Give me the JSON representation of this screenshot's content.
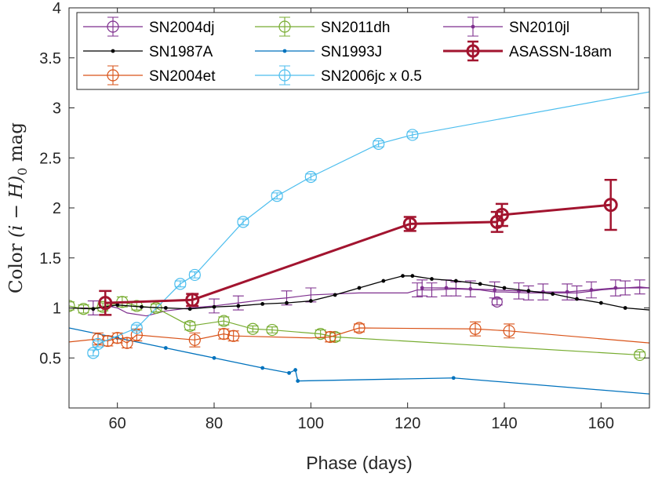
{
  "chart_data": {
    "type": "line",
    "title": "",
    "xlabel": "Phase (days)",
    "ylabel": "Color (i − H)₀ mag",
    "ylabel_parts": {
      "prefix": "Color ",
      "math": "(i − H)",
      "sub": "0",
      "suffix": " mag"
    },
    "xlim": [
      50,
      170
    ],
    "ylim": [
      0,
      4
    ],
    "xticks": [
      60,
      80,
      100,
      120,
      140,
      160
    ],
    "yticks": [
      0.5,
      1,
      1.5,
      2,
      2.5,
      3,
      3.5,
      4
    ],
    "ytick_labels": [
      "0.5",
      "1",
      "1.5",
      "2",
      "2.5",
      "3",
      "3.5",
      "4"
    ],
    "series": [
      {
        "name": "SN2004dj",
        "color": "#7E2F8E",
        "marker": "circle",
        "errorbars": true,
        "x": [
          51,
          55,
          58,
          60,
          62,
          66,
          70,
          75,
          80,
          85,
          90,
          95,
          100,
          110,
          120,
          122,
          125,
          130,
          135,
          138,
          140,
          145,
          150,
          155,
          160,
          165,
          168,
          170
        ],
        "y": [
          1.0,
          1.0,
          1.02,
          1.0,
          0.95,
          0.92,
          0.97,
          1.0,
          1.02,
          1.05,
          1.08,
          1.1,
          1.13,
          1.15,
          1.15,
          1.18,
          1.18,
          1.19,
          1.18,
          1.16,
          1.16,
          1.15,
          1.15,
          1.15,
          1.18,
          1.2,
          1.21,
          1.2
        ],
        "marked_points": [
          [
            138.5,
            1.06,
            0.03
          ]
        ]
      },
      {
        "name": "SN1987A",
        "color": "#000000",
        "marker": "dot",
        "errorbars": false,
        "x": [
          50,
          55,
          60,
          65,
          70,
          75,
          80,
          85,
          90,
          95,
          100,
          105,
          110,
          115,
          119,
          121,
          125,
          130,
          135,
          140,
          145,
          150,
          155,
          160,
          165,
          170
        ],
        "y": [
          1.0,
          0.99,
          1.03,
          1.01,
          1.0,
          0.99,
          1.01,
          1.02,
          1.04,
          1.05,
          1.07,
          1.13,
          1.2,
          1.27,
          1.32,
          1.32,
          1.29,
          1.27,
          1.24,
          1.2,
          1.17,
          1.14,
          1.09,
          1.05,
          1.0,
          0.98
        ]
      },
      {
        "name": "SN2004et",
        "color": "#D95319",
        "marker": "circle",
        "errorbars": true,
        "x": [
          50,
          56,
          58,
          60,
          62,
          64,
          76,
          82,
          84,
          100,
          104,
          110,
          134,
          141,
          170
        ],
        "y": [
          0.66,
          0.69,
          0.67,
          0.7,
          0.65,
          0.73,
          0.68,
          0.74,
          0.72,
          0.7,
          0.71,
          0.8,
          0.79,
          0.77,
          0.65
        ],
        "yerr": [
          0,
          0.06,
          0.05,
          0.05,
          0.05,
          0.06,
          0.07,
          0.05,
          0.05,
          0,
          0.05,
          0.04,
          0.07,
          0.07,
          0
        ]
      },
      {
        "name": "SN2011dh",
        "color": "#77AC30",
        "marker": "circle",
        "errorbars": true,
        "x": [
          50,
          53,
          57,
          61,
          64,
          68,
          75,
          82,
          88,
          92,
          102,
          105,
          168
        ],
        "y": [
          1.02,
          0.99,
          1.01,
          1.06,
          1.02,
          1.0,
          0.82,
          0.87,
          0.79,
          0.78,
          0.74,
          0.71,
          0.53
        ],
        "yerr": [
          0.04,
          0.04,
          0.04,
          0.05,
          0.04,
          0.04,
          0.04,
          0.04,
          0.03,
          0.03,
          0.04,
          0.04,
          0.03
        ]
      },
      {
        "name": "SN1993J",
        "color": "#0072BD",
        "marker": "dot",
        "errorbars": false,
        "x": [
          50,
          60,
          70,
          80,
          90,
          95.5,
          96.8,
          97.3,
          129.5,
          170
        ],
        "y": [
          0.8,
          0.7,
          0.6,
          0.5,
          0.4,
          0.35,
          0.38,
          0.27,
          0.3,
          0.14
        ]
      },
      {
        "name": "SN2006jc x 0.5",
        "color": "#4DBEEE",
        "marker": "circle",
        "errorbars": true,
        "x": [
          55,
          56,
          64,
          73,
          76,
          86,
          93,
          100,
          114,
          121,
          170
        ],
        "y": [
          0.55,
          0.64,
          0.8,
          1.24,
          1.33,
          1.86,
          2.12,
          2.31,
          2.64,
          2.73,
          3.16
        ],
        "yerr": [
          0.03,
          0.03,
          0.03,
          0.03,
          0.03,
          0.03,
          0.03,
          0.03,
          0.03,
          0.03,
          0
        ]
      },
      {
        "name": "SN2010jl",
        "color": "#7E2F8E",
        "marker": "dot",
        "errorbars": true,
        "x": [
          123,
          128,
          133,
          138,
          143,
          148,
          153,
          158,
          163,
          170
        ],
        "y": [
          1.2,
          1.2,
          1.19,
          1.18,
          1.17,
          1.16,
          1.16,
          1.18,
          1.2,
          1.2
        ]
      },
      {
        "name": "ASASSN-18am",
        "color": "#A2142F",
        "marker": "circle",
        "errorbars": true,
        "highlight": true,
        "x": [
          57.5,
          75.5,
          120.5,
          138.5,
          139.5,
          162
        ],
        "y": [
          1.05,
          1.08,
          1.84,
          1.86,
          1.93,
          2.03
        ],
        "yerr": [
          0.12,
          0.06,
          0.07,
          0.1,
          0.11,
          0.25
        ]
      }
    ],
    "legend": {
      "location": "top",
      "columns": 3
    }
  },
  "colors": {
    "axis": "#262626",
    "background": "#ffffff"
  }
}
